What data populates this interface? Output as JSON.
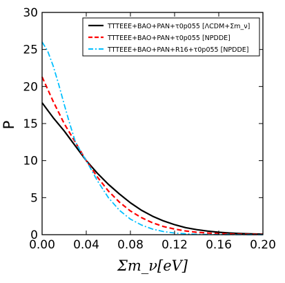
{
  "chart_data": {
    "type": "line",
    "xlabel": "Σm_ν[eV]",
    "ylabel": "P",
    "xlim": [
      0.0,
      0.2
    ],
    "ylim": [
      0,
      30
    ],
    "x_ticks": [
      "0.00",
      "0.04",
      "0.08",
      "0.12",
      "0.16",
      "0.20"
    ],
    "y_ticks": [
      "0",
      "5",
      "10",
      "15",
      "20",
      "25",
      "30"
    ],
    "grid": false,
    "legend_position": "top-right",
    "series": [
      {
        "name": "TTTEEE+BAO+PAN+τ0p055 [ΛCDM+Σm_ν]",
        "color": "#000000",
        "style": "solid",
        "x": [
          0.0,
          0.01,
          0.02,
          0.03,
          0.04,
          0.05,
          0.06,
          0.07,
          0.08,
          0.09,
          0.1,
          0.11,
          0.12,
          0.13,
          0.14,
          0.15,
          0.16,
          0.17,
          0.18,
          0.19,
          0.2
        ],
        "y": [
          17.8,
          15.8,
          14.0,
          12.0,
          10.0,
          8.3,
          6.8,
          5.5,
          4.3,
          3.3,
          2.5,
          1.85,
          1.35,
          0.95,
          0.68,
          0.48,
          0.33,
          0.22,
          0.15,
          0.1,
          0.07
        ]
      },
      {
        "name": "TTTEEE+BAO+PAN+τ0p055 [NPDDE]",
        "color": "#ff0000",
        "style": "dashed",
        "x": [
          0.0,
          0.01,
          0.02,
          0.03,
          0.04,
          0.05,
          0.06,
          0.07,
          0.08,
          0.09,
          0.1,
          0.11,
          0.12,
          0.13,
          0.14,
          0.15,
          0.16,
          0.17,
          0.18,
          0.19,
          0.2
        ],
        "y": [
          21.3,
          18.0,
          15.0,
          12.5,
          10.0,
          7.8,
          5.9,
          4.4,
          3.2,
          2.3,
          1.6,
          1.1,
          0.75,
          0.5,
          0.33,
          0.22,
          0.14,
          0.09,
          0.06,
          0.04,
          0.03
        ]
      },
      {
        "name": "TTTEEE+BAO+PAN+R16+τ0p055 [NPDDE]",
        "color": "#00bfff",
        "style": "dashdot",
        "x": [
          0.0,
          0.005,
          0.01,
          0.015,
          0.02,
          0.025,
          0.03,
          0.035,
          0.04,
          0.05,
          0.06,
          0.07,
          0.08,
          0.09,
          0.1,
          0.11,
          0.12,
          0.13,
          0.14,
          0.15,
          0.16,
          0.18,
          0.2
        ],
        "y": [
          26.0,
          24.8,
          22.8,
          20.3,
          17.6,
          15.0,
          12.6,
          11.2,
          10.0,
          7.3,
          5.0,
          3.3,
          2.1,
          1.3,
          0.75,
          0.42,
          0.22,
          0.12,
          0.06,
          0.03,
          0.02,
          0.01,
          0.0
        ]
      }
    ]
  }
}
